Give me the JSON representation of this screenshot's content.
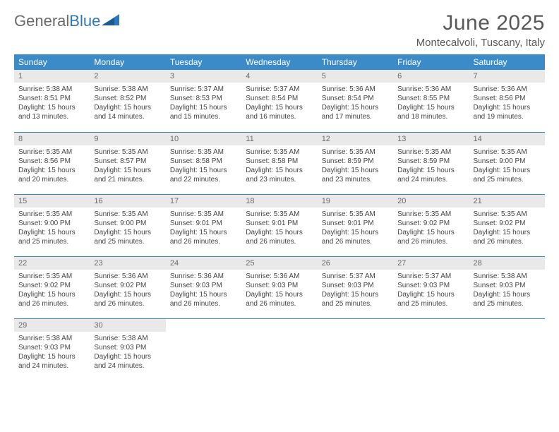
{
  "logo": {
    "text1": "General",
    "text2": "Blue",
    "color1": "#6a6a6a",
    "color2": "#2f77b8"
  },
  "header": {
    "month_title": "June 2025",
    "location": "Montecalvoli, Tuscany, Italy"
  },
  "colors": {
    "header_bg": "#3b8bc9",
    "header_text": "#ffffff",
    "daynum_bg": "#e9e9e9",
    "daynum_text": "#6a6a6a",
    "cell_text": "#444444",
    "row_border": "#3b8bc9",
    "page_bg": "#ffffff"
  },
  "typography": {
    "month_title_fontsize": 30,
    "location_fontsize": 15,
    "weekday_fontsize": 12,
    "daynum_fontsize": 11,
    "cell_fontsize": 10
  },
  "calendar": {
    "type": "table",
    "columns": [
      "Sunday",
      "Monday",
      "Tuesday",
      "Wednesday",
      "Thursday",
      "Friday",
      "Saturday"
    ],
    "weeks": [
      [
        {
          "n": "1",
          "sunrise": "5:38 AM",
          "sunset": "8:51 PM",
          "d_h": "15",
          "d_m": "13"
        },
        {
          "n": "2",
          "sunrise": "5:38 AM",
          "sunset": "8:52 PM",
          "d_h": "15",
          "d_m": "14"
        },
        {
          "n": "3",
          "sunrise": "5:37 AM",
          "sunset": "8:53 PM",
          "d_h": "15",
          "d_m": "15"
        },
        {
          "n": "4",
          "sunrise": "5:37 AM",
          "sunset": "8:54 PM",
          "d_h": "15",
          "d_m": "16"
        },
        {
          "n": "5",
          "sunrise": "5:36 AM",
          "sunset": "8:54 PM",
          "d_h": "15",
          "d_m": "17"
        },
        {
          "n": "6",
          "sunrise": "5:36 AM",
          "sunset": "8:55 PM",
          "d_h": "15",
          "d_m": "18"
        },
        {
          "n": "7",
          "sunrise": "5:36 AM",
          "sunset": "8:56 PM",
          "d_h": "15",
          "d_m": "19"
        }
      ],
      [
        {
          "n": "8",
          "sunrise": "5:35 AM",
          "sunset": "8:56 PM",
          "d_h": "15",
          "d_m": "20"
        },
        {
          "n": "9",
          "sunrise": "5:35 AM",
          "sunset": "8:57 PM",
          "d_h": "15",
          "d_m": "21"
        },
        {
          "n": "10",
          "sunrise": "5:35 AM",
          "sunset": "8:58 PM",
          "d_h": "15",
          "d_m": "22"
        },
        {
          "n": "11",
          "sunrise": "5:35 AM",
          "sunset": "8:58 PM",
          "d_h": "15",
          "d_m": "23"
        },
        {
          "n": "12",
          "sunrise": "5:35 AM",
          "sunset": "8:59 PM",
          "d_h": "15",
          "d_m": "23"
        },
        {
          "n": "13",
          "sunrise": "5:35 AM",
          "sunset": "8:59 PM",
          "d_h": "15",
          "d_m": "24"
        },
        {
          "n": "14",
          "sunrise": "5:35 AM",
          "sunset": "9:00 PM",
          "d_h": "15",
          "d_m": "25"
        }
      ],
      [
        {
          "n": "15",
          "sunrise": "5:35 AM",
          "sunset": "9:00 PM",
          "d_h": "15",
          "d_m": "25"
        },
        {
          "n": "16",
          "sunrise": "5:35 AM",
          "sunset": "9:00 PM",
          "d_h": "15",
          "d_m": "25"
        },
        {
          "n": "17",
          "sunrise": "5:35 AM",
          "sunset": "9:01 PM",
          "d_h": "15",
          "d_m": "26"
        },
        {
          "n": "18",
          "sunrise": "5:35 AM",
          "sunset": "9:01 PM",
          "d_h": "15",
          "d_m": "26"
        },
        {
          "n": "19",
          "sunrise": "5:35 AM",
          "sunset": "9:01 PM",
          "d_h": "15",
          "d_m": "26"
        },
        {
          "n": "20",
          "sunrise": "5:35 AM",
          "sunset": "9:02 PM",
          "d_h": "15",
          "d_m": "26"
        },
        {
          "n": "21",
          "sunrise": "5:35 AM",
          "sunset": "9:02 PM",
          "d_h": "15",
          "d_m": "26"
        }
      ],
      [
        {
          "n": "22",
          "sunrise": "5:35 AM",
          "sunset": "9:02 PM",
          "d_h": "15",
          "d_m": "26"
        },
        {
          "n": "23",
          "sunrise": "5:36 AM",
          "sunset": "9:02 PM",
          "d_h": "15",
          "d_m": "26"
        },
        {
          "n": "24",
          "sunrise": "5:36 AM",
          "sunset": "9:03 PM",
          "d_h": "15",
          "d_m": "26"
        },
        {
          "n": "25",
          "sunrise": "5:36 AM",
          "sunset": "9:03 PM",
          "d_h": "15",
          "d_m": "26"
        },
        {
          "n": "26",
          "sunrise": "5:37 AM",
          "sunset": "9:03 PM",
          "d_h": "15",
          "d_m": "25"
        },
        {
          "n": "27",
          "sunrise": "5:37 AM",
          "sunset": "9:03 PM",
          "d_h": "15",
          "d_m": "25"
        },
        {
          "n": "28",
          "sunrise": "5:38 AM",
          "sunset": "9:03 PM",
          "d_h": "15",
          "d_m": "25"
        }
      ],
      [
        {
          "n": "29",
          "sunrise": "5:38 AM",
          "sunset": "9:03 PM",
          "d_h": "15",
          "d_m": "24"
        },
        {
          "n": "30",
          "sunrise": "5:38 AM",
          "sunset": "9:03 PM",
          "d_h": "15",
          "d_m": "24"
        },
        null,
        null,
        null,
        null,
        null
      ]
    ],
    "labels": {
      "sunrise_prefix": "Sunrise: ",
      "sunset_prefix": "Sunset: ",
      "daylight_prefix": "Daylight: ",
      "hours_word": " hours",
      "and_word": "and ",
      "minutes_word": " minutes."
    }
  }
}
